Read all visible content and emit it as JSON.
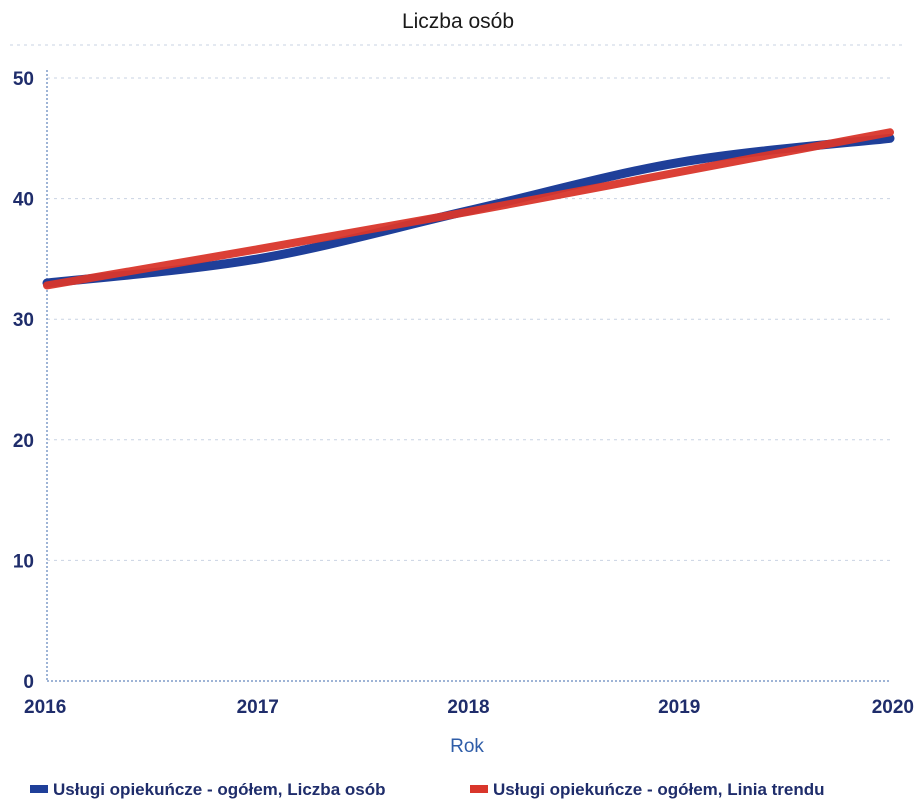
{
  "chart_data": {
    "type": "line",
    "title": "Liczba osób",
    "xlabel": "Rok",
    "ylabel": "",
    "x": [
      2016,
      2017,
      2018,
      2019,
      2020
    ],
    "ylim": [
      0,
      50
    ],
    "yticks": [
      0,
      10,
      20,
      30,
      40,
      50
    ],
    "grid": true,
    "legend_position": "bottom",
    "series": [
      {
        "name": "Usługi opiekuńcze - ogółem, Liczba osób",
        "values": [
          33.0,
          35.0,
          39.0,
          43.0,
          45.0
        ],
        "color": "#1f3f99"
      },
      {
        "name": "Usługi opiekuńcze - ogółem, Linia trendu",
        "values": [
          32.8,
          35.8,
          38.9,
          42.2,
          45.5
        ],
        "color": "#d9362b"
      }
    ]
  }
}
